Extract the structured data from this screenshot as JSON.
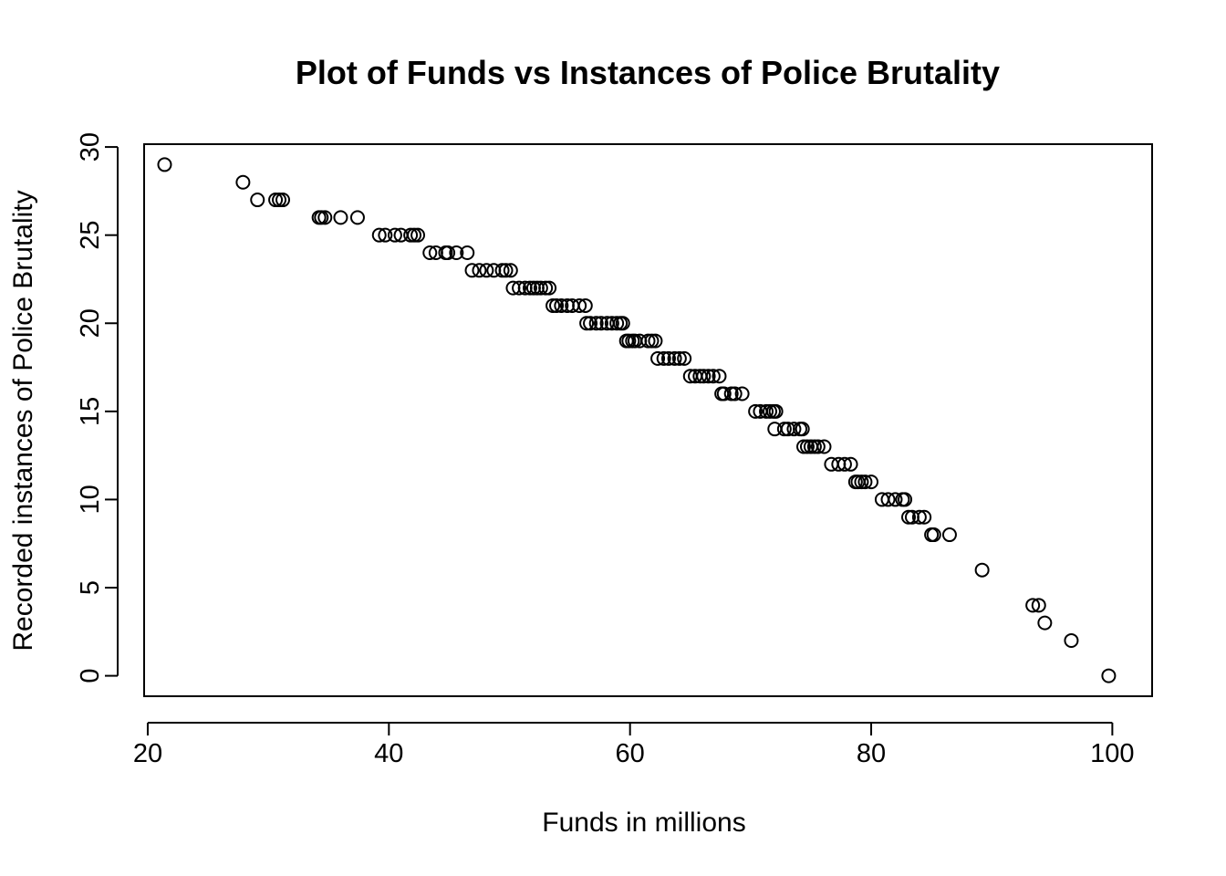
{
  "chart_data": {
    "type": "scatter",
    "title": "Plot of Funds vs Instances of Police Brutality",
    "xlabel": "Funds in millions",
    "ylabel": "Recorded instances of Police Brutality",
    "xlim": [
      19.7,
      103.3
    ],
    "ylim": [
      -1.16,
      30.16
    ],
    "xticks": [
      20,
      40,
      60,
      80,
      100
    ],
    "yticks": [
      0,
      5,
      10,
      15,
      20,
      25,
      30
    ],
    "grid": false,
    "legend": "none",
    "points": [
      [
        21.4,
        29
      ],
      [
        27.9,
        28
      ],
      [
        29.1,
        27
      ],
      [
        30.6,
        27
      ],
      [
        30.9,
        27
      ],
      [
        31.2,
        27
      ],
      [
        34.2,
        26
      ],
      [
        34.4,
        26
      ],
      [
        34.7,
        26
      ],
      [
        36.0,
        26
      ],
      [
        37.4,
        26
      ],
      [
        39.2,
        25
      ],
      [
        39.7,
        25
      ],
      [
        40.5,
        25
      ],
      [
        41.0,
        25
      ],
      [
        41.8,
        25
      ],
      [
        42.1,
        25
      ],
      [
        42.4,
        25
      ],
      [
        43.4,
        24
      ],
      [
        43.9,
        24
      ],
      [
        44.7,
        24
      ],
      [
        44.9,
        24
      ],
      [
        45.6,
        24
      ],
      [
        46.5,
        24
      ],
      [
        46.9,
        23
      ],
      [
        47.5,
        23
      ],
      [
        48.1,
        23
      ],
      [
        48.7,
        23
      ],
      [
        49.4,
        23
      ],
      [
        49.7,
        23
      ],
      [
        50.1,
        23
      ],
      [
        50.3,
        22
      ],
      [
        50.8,
        22
      ],
      [
        51.3,
        22
      ],
      [
        51.7,
        22
      ],
      [
        52.0,
        22
      ],
      [
        52.3,
        22
      ],
      [
        52.6,
        22
      ],
      [
        53.0,
        22
      ],
      [
        53.3,
        22
      ],
      [
        53.6,
        21
      ],
      [
        53.9,
        21
      ],
      [
        54.3,
        21
      ],
      [
        54.8,
        21
      ],
      [
        55.2,
        21
      ],
      [
        55.8,
        21
      ],
      [
        56.3,
        21
      ],
      [
        56.4,
        20
      ],
      [
        56.7,
        20
      ],
      [
        57.2,
        20
      ],
      [
        57.6,
        20
      ],
      [
        58.1,
        20
      ],
      [
        58.5,
        20
      ],
      [
        58.9,
        20
      ],
      [
        59.2,
        20
      ],
      [
        59.4,
        20
      ],
      [
        59.7,
        19
      ],
      [
        59.9,
        19
      ],
      [
        60.2,
        19
      ],
      [
        60.4,
        19
      ],
      [
        60.8,
        19
      ],
      [
        61.5,
        19
      ],
      [
        61.8,
        19
      ],
      [
        62.1,
        19
      ],
      [
        62.3,
        18
      ],
      [
        62.8,
        18
      ],
      [
        63.2,
        18
      ],
      [
        63.7,
        18
      ],
      [
        64.1,
        18
      ],
      [
        64.5,
        18
      ],
      [
        65.0,
        17
      ],
      [
        65.4,
        17
      ],
      [
        65.8,
        17
      ],
      [
        66.1,
        17
      ],
      [
        66.5,
        17
      ],
      [
        66.9,
        17
      ],
      [
        67.4,
        17
      ],
      [
        67.6,
        16
      ],
      [
        67.8,
        16
      ],
      [
        68.4,
        16
      ],
      [
        68.7,
        16
      ],
      [
        69.3,
        16
      ],
      [
        70.4,
        15
      ],
      [
        70.8,
        15
      ],
      [
        71.3,
        15
      ],
      [
        71.6,
        15
      ],
      [
        71.9,
        15
      ],
      [
        72.1,
        15
      ],
      [
        72.0,
        14
      ],
      [
        72.8,
        14
      ],
      [
        73.1,
        14
      ],
      [
        73.6,
        14
      ],
      [
        74.1,
        14
      ],
      [
        74.3,
        14
      ],
      [
        74.4,
        13
      ],
      [
        74.7,
        13
      ],
      [
        75.0,
        13
      ],
      [
        75.3,
        13
      ],
      [
        75.6,
        13
      ],
      [
        76.1,
        13
      ],
      [
        76.7,
        12
      ],
      [
        77.3,
        12
      ],
      [
        77.8,
        12
      ],
      [
        78.3,
        12
      ],
      [
        78.7,
        11
      ],
      [
        78.9,
        11
      ],
      [
        79.2,
        11
      ],
      [
        79.5,
        11
      ],
      [
        80.0,
        11
      ],
      [
        80.9,
        10
      ],
      [
        81.4,
        10
      ],
      [
        82.0,
        10
      ],
      [
        82.6,
        10
      ],
      [
        82.8,
        10
      ],
      [
        83.1,
        9
      ],
      [
        83.4,
        9
      ],
      [
        84.0,
        9
      ],
      [
        84.4,
        9
      ],
      [
        85.0,
        8
      ],
      [
        85.2,
        8
      ],
      [
        86.5,
        8
      ],
      [
        89.2,
        6
      ],
      [
        93.4,
        4
      ],
      [
        93.9,
        4
      ],
      [
        94.4,
        3
      ],
      [
        96.6,
        2
      ],
      [
        99.7,
        0
      ]
    ]
  }
}
